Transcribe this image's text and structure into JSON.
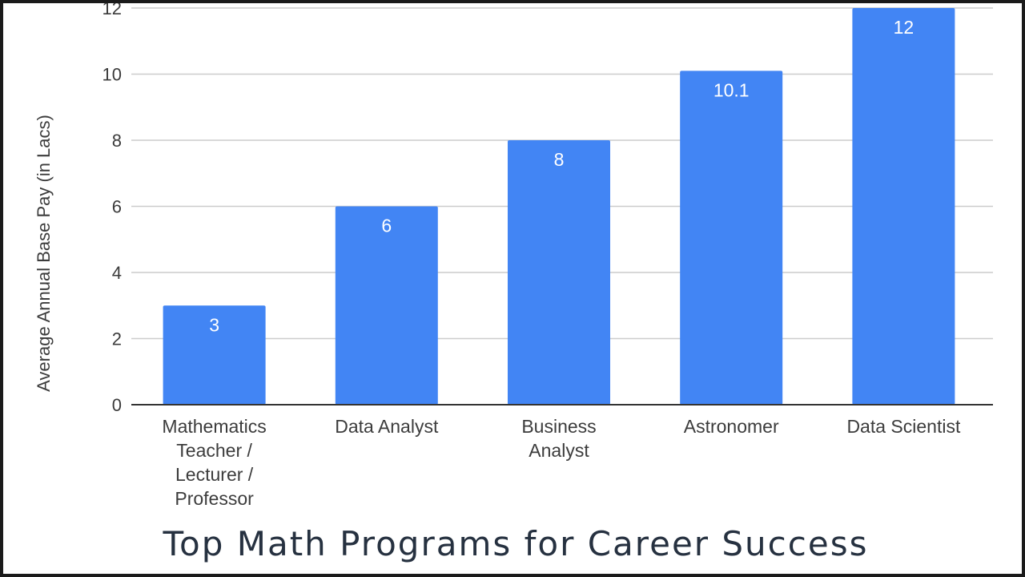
{
  "chart_data": {
    "type": "bar",
    "categories": [
      [
        "Mathematics",
        "Teacher /",
        "Lecturer /",
        "Professor"
      ],
      [
        "Data Analyst"
      ],
      [
        "Business",
        "Analyst"
      ],
      [
        "Astronomer"
      ],
      [
        "Data Scientist"
      ]
    ],
    "values": [
      3,
      6,
      8,
      10.1,
      12
    ],
    "data_labels": [
      "3",
      "6",
      "8",
      "10.1",
      "12"
    ],
    "ylabel": "Average Annual Base Pay (in Lacs)",
    "xlabel": "",
    "ylim": [
      0,
      12
    ],
    "yticks": [
      0,
      2,
      4,
      6,
      8,
      10,
      12
    ],
    "grid": true,
    "legend": "none",
    "bar_color": "#4285f4",
    "gridline_color": "#cccccc",
    "axis_color": "#333333"
  },
  "caption": "Top Math Programs for Career Success"
}
